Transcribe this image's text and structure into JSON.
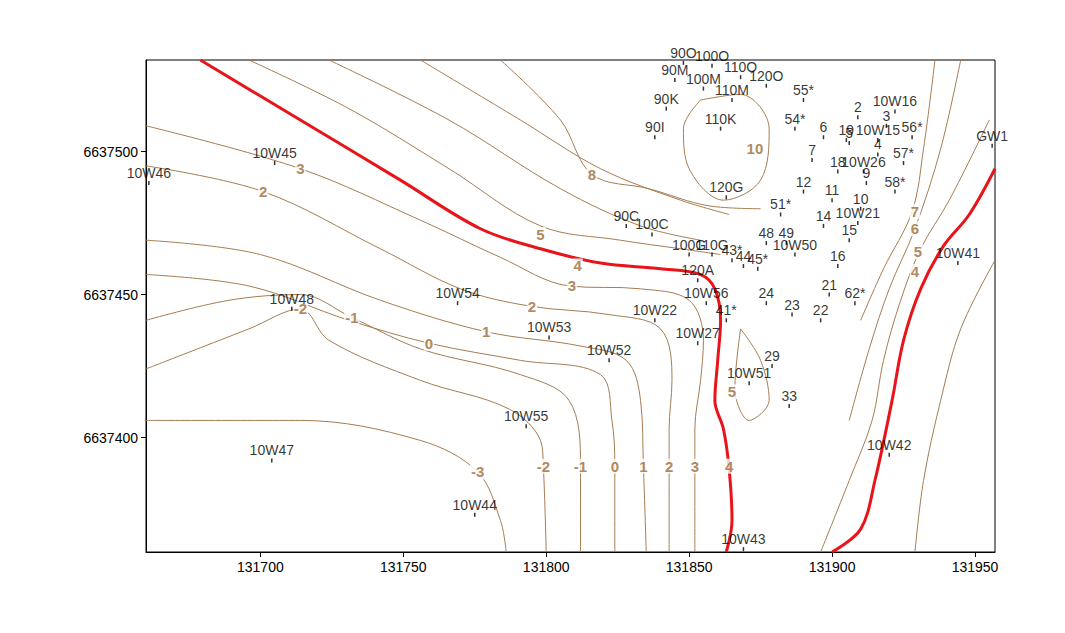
{
  "chart_data": {
    "type": "contour",
    "xlim": [
      131660,
      131957
    ],
    "xticks": [
      131700,
      131750,
      131800,
      131850,
      131900,
      131950
    ],
    "ylim": [
      6637360,
      6637532
    ],
    "yticks": [
      6637400,
      6637450,
      6637500
    ],
    "grid": false,
    "contours": [
      {
        "level": 4,
        "color": "#e8141a",
        "x": [
          131679,
          131714,
          131749,
          131777,
          131798,
          131819,
          131840,
          131854,
          131859,
          131861,
          131860,
          131859,
          131862,
          131864,
          131865,
          131863
        ],
        "y": [
          6637532,
          6637511,
          6637490,
          6637473,
          6637466,
          6637461,
          6637459,
          6637457,
          6637452,
          6637441,
          6637427,
          6637413,
          6637403,
          6637389,
          6637371,
          6637360
        ]
      },
      {
        "level": 4,
        "color": "#e8141a",
        "x": [
          131957,
          131948,
          131939,
          131931,
          131925,
          131921,
          131915,
          131910,
          131900
        ],
        "y": [
          6637494,
          6637478,
          6637467,
          6637452,
          6637434,
          6637413,
          6637385,
          6637368,
          6637360
        ]
      },
      {
        "level": 5,
        "color": "#a67c52",
        "x": [
          131696,
          131731,
          131766,
          131798,
          131826,
          131847,
          131861
        ],
        "y": [
          6637532,
          6637515,
          6637494,
          6637474,
          6637469,
          6637466,
          6637464
        ]
      },
      {
        "level": 6,
        "color": "#a67c52",
        "x": [
          131724,
          131766,
          131805,
          131833,
          131854
        ],
        "y": [
          6637532,
          6637511,
          6637487,
          6637474,
          6637469
        ]
      },
      {
        "level": 7,
        "color": "#a67c52",
        "x": [
          131756,
          131791,
          131819,
          131847,
          131864
        ],
        "y": [
          6637532,
          6637511,
          6637494,
          6637483,
          6637478
        ]
      },
      {
        "level": 8,
        "color": "#a67c52",
        "x": [
          131784,
          131805,
          131816,
          131836,
          131857,
          131875
        ],
        "y": [
          6637532,
          6637511,
          6637492,
          6637487,
          6637481,
          6637480
        ]
      },
      {
        "level": 10,
        "color": "#a67c52",
        "x": [
          131854,
          131868,
          131878,
          131875,
          131862,
          131850,
          131848,
          131854
        ],
        "y": [
          6637518,
          6637520,
          6637508,
          6637490,
          6637483,
          6637494,
          6637508,
          6637518
        ]
      },
      {
        "level": 3,
        "color": "#a67c52",
        "x": [
          131660,
          131714,
          131756,
          131784,
          131808,
          131833,
          131850,
          131855,
          131854,
          131852,
          131852
        ],
        "y": [
          6637509,
          6637494,
          6637476,
          6637463,
          6637453,
          6637452,
          6637448,
          6637434,
          6637420,
          6637403,
          6637360
        ]
      },
      {
        "level": 2,
        "color": "#a67c52",
        "x": [
          131660,
          131701,
          131742,
          131770,
          131794,
          131822,
          131840,
          131844,
          131843,
          131843
        ],
        "y": [
          6637495,
          6637486,
          6637466,
          6637452,
          6637446,
          6637443,
          6637438,
          6637420,
          6637403,
          6637360
        ]
      },
      {
        "level": 1,
        "color": "#a67c52",
        "x": [
          131660,
          131700,
          131742,
          131779,
          131812,
          131828,
          131833,
          131834,
          131835
        ],
        "y": [
          6637469,
          6637464,
          6637448,
          6637437,
          6637432,
          6637427,
          6637413,
          6637390,
          6637360
        ]
      },
      {
        "level": 0,
        "color": "#a67c52",
        "x": [
          131660,
          131696,
          131731,
          131759,
          131791,
          131819,
          131823,
          131824,
          131824
        ],
        "y": [
          6637457,
          6637453,
          6637441,
          6637433,
          6637427,
          6637422,
          6637406,
          6637390,
          6637360
        ]
      },
      {
        "level": -1,
        "color": "#a67c52",
        "x": [
          131660,
          131689,
          131714,
          131732,
          131756,
          131791,
          131808,
          131812,
          131812
        ],
        "y": [
          6637441,
          6637448,
          6637450,
          6637442,
          6637431,
          6637422,
          6637413,
          6637390,
          6637360
        ]
      },
      {
        "level": -2,
        "color": "#a67c52",
        "x": [
          131660,
          131696,
          131714,
          131724,
          131756,
          131787,
          131798,
          131799,
          131800
        ],
        "y": [
          6637424,
          6637438,
          6637445,
          6637434,
          6637420,
          6637410,
          6637399,
          6637390,
          6637360
        ]
      },
      {
        "level": -3,
        "color": "#a67c52",
        "x": [
          131660,
          131714,
          131756,
          131776,
          131784,
          131786
        ],
        "y": [
          6637406,
          6637406,
          6637399,
          6637388,
          6637371,
          6637360
        ]
      },
      {
        "level": 5,
        "color": "#a67c52",
        "x": [
          131955,
          131941,
          131931,
          131924,
          131918,
          131914,
          131906,
          131896
        ],
        "y": [
          6637511,
          6637483,
          6637466,
          6637448,
          6637427,
          6637406,
          6637385,
          6637360
        ]
      },
      {
        "level": 6,
        "color": "#a67c52",
        "x": [
          131945,
          131938,
          131929,
          131920,
          131913,
          131906
        ],
        "y": [
          6637532,
          6637501,
          6637473,
          6637452,
          6637431,
          6637406
        ]
      },
      {
        "level": 7,
        "color": "#a67c52",
        "x": [
          131936,
          131932,
          131928,
          131918,
          131910
        ],
        "y": [
          6637532,
          6637501,
          6637479,
          6637459,
          6637441
        ]
      },
      {
        "level": 3,
        "color": "#a67c52",
        "x": [
          131957,
          131945,
          131938,
          131932,
          131929
        ],
        "y": [
          6637462,
          6637438,
          6637413,
          6637385,
          6637360
        ]
      },
      {
        "level": 5,
        "color": "#a67c52",
        "x": [
          131868,
          131875,
          131878,
          131871,
          131866,
          131868
        ],
        "y": [
          6637438,
          6637427,
          6637413,
          6637406,
          6637417,
          6637438
        ]
      }
    ],
    "contour_labels": {
      "color": "#9b6a34",
      "level": [
        3,
        2,
        5,
        4,
        3,
        2,
        1,
        0,
        -1,
        -2,
        8,
        10,
        7,
        6,
        5,
        4,
        -3,
        -2,
        -1,
        0,
        1,
        2,
        3,
        4,
        5
      ],
      "x": [
        131714,
        131701,
        131798,
        131811,
        131809,
        131795,
        131779,
        131759,
        131732,
        131714,
        131816,
        131873,
        131929,
        131929,
        131930,
        131929,
        131776,
        131799,
        131812,
        131824,
        131834,
        131843,
        131852,
        131864,
        131865
      ],
      "y": [
        6637494,
        6637486,
        6637471,
        6637460,
        6637453,
        6637446,
        6637437,
        6637433,
        6637442,
        6637445,
        6637492,
        6637501,
        6637479,
        6637473,
        6637465,
        6637458,
        6637388,
        6637390,
        6637390,
        6637390,
        6637390,
        6637390,
        6637390,
        6637390,
        6637416
      ]
    },
    "points": {
      "color": "#000000",
      "labels": [
        "90O",
        "100O",
        "110O",
        "120O",
        "90M",
        "100M",
        "110M",
        "90K",
        "110K",
        "90I",
        "55*",
        "54*",
        "6",
        "2",
        "10W16",
        "3",
        "56*",
        "19",
        "10W15",
        "5",
        "4",
        "7",
        "57*",
        "18",
        "10W26",
        "9",
        "58*",
        "12",
        "11",
        "120G",
        "10",
        "51*",
        "14",
        "10W21",
        "15",
        "90C",
        "100C",
        "48",
        "49",
        "10W50",
        "100G",
        "110G",
        "43*",
        "44",
        "45*",
        "16",
        "120A",
        "21",
        "24",
        "10W56",
        "62*",
        "23",
        "22",
        "41*",
        "10W22",
        "10W27",
        "29",
        "10W51",
        "33",
        "10W54",
        "10W53",
        "10W52",
        "10W48",
        "10W55",
        "10W47",
        "10W44",
        "10W43",
        "10W42",
        "10W41",
        "GW1",
        "10W46",
        "10W45"
      ],
      "x": [
        131848,
        131858,
        131868,
        131877,
        131845,
        131855,
        131865,
        131842,
        131861,
        131838,
        131890,
        131887,
        131897,
        131909,
        131922,
        131919,
        131928,
        131905,
        131916,
        131906,
        131916,
        131893,
        131925,
        131902,
        131911,
        131912,
        131922,
        131890,
        131900,
        131863,
        131910,
        131882,
        131897,
        131909,
        131906,
        131828,
        131837,
        131877,
        131884,
        131887,
        131850,
        131858,
        131865,
        131869,
        131874,
        131902,
        131853,
        131899,
        131877,
        131856,
        131908,
        131886,
        131896,
        131863,
        131838,
        131853,
        131879,
        131871,
        131885,
        131769,
        131801,
        131822,
        131711,
        131793,
        131704,
        131775,
        131869,
        131920,
        131944,
        131956,
        131661,
        131705
      ],
      "y": [
        6637531,
        6637530,
        6637526,
        6637523,
        6637525,
        6637522,
        6637518,
        6637515,
        6637508,
        6637505,
        6637518,
        6637508,
        6637505,
        6637512,
        6637514,
        6637509,
        6637505,
        6637504,
        6637504,
        6637503,
        6637499,
        6637497,
        6637496,
        6637493,
        6637493,
        6637489,
        6637486,
        6637486,
        6637483,
        6637484,
        6637480,
        6637478,
        6637474,
        6637475,
        6637469,
        6637474,
        6637471,
        6637468,
        6637468,
        6637464,
        6637464,
        6637464,
        6637462,
        6637460,
        6637459,
        6637460,
        6637455,
        6637450,
        6637447,
        6637447,
        6637447,
        6637443,
        6637441,
        6637441,
        6637441,
        6637433,
        6637425,
        6637419,
        6637411,
        6637447,
        6637435,
        6637427,
        6637445,
        6637404,
        6637392,
        6637373,
        6637361,
        6637394,
        6637461,
        6637502,
        6637489,
        6637496
      ]
    }
  }
}
